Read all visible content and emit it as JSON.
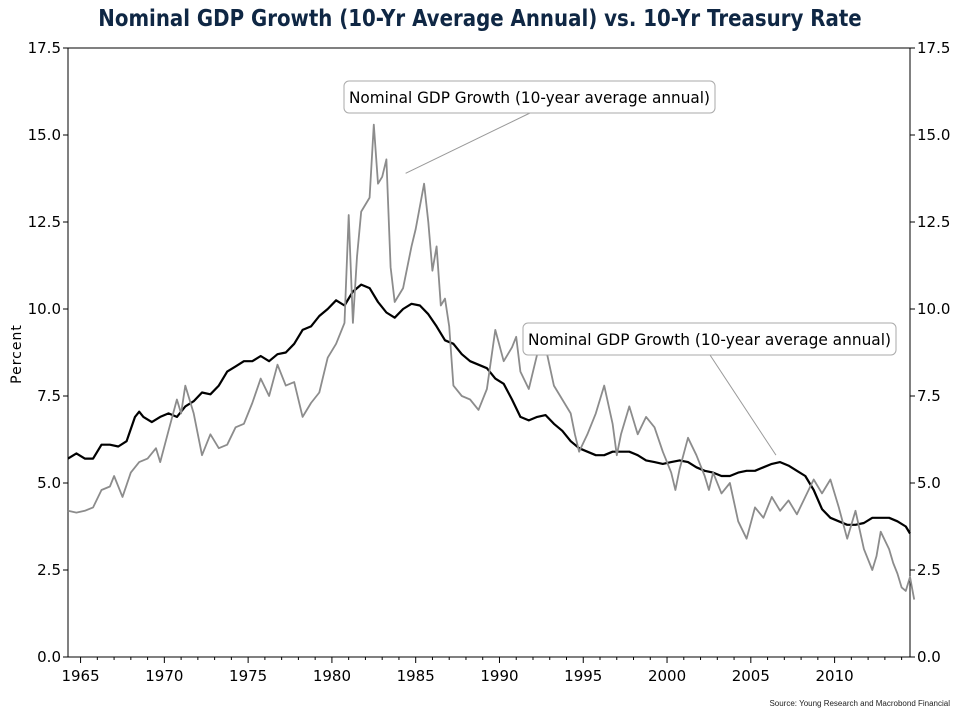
{
  "title": "Nominal GDP Growth (10-Yr Average Annual) vs. 10-Yr Treasury Rate",
  "source": "Source: Young Research and Macrobond Financial",
  "chart_data": {
    "type": "line",
    "title": "Nominal GDP Growth (10-Yr Average Annual) vs. 10-Yr Treasury Rate",
    "ylabel": "Percent",
    "xlim": [
      1964.25,
      2014.5
    ],
    "ylim": [
      0,
      17.5
    ],
    "x_ticks": [
      "1965",
      "1970",
      "1975",
      "1980",
      "1985",
      "1990",
      "1995",
      "2000",
      "2005",
      "2010"
    ],
    "y_ticks": [
      "0.0",
      "2.5",
      "5.0",
      "7.5",
      "10.0",
      "12.5",
      "15.0",
      "17.5"
    ],
    "grid": false,
    "annotations": [
      {
        "text": "Nominal GDP Growth (10-year average annual)",
        "points_to_series": 1,
        "x": 1984.4,
        "y": 13.9
      },
      {
        "text": "Nominal GDP Growth (10-year average annual)",
        "points_to_series": 0,
        "x": 2006.5,
        "y": 5.8
      }
    ],
    "series": [
      {
        "color": "#000000",
        "points": [
          [
            1964.25,
            5.7
          ],
          [
            1964.75,
            5.85
          ],
          [
            1965.25,
            5.7
          ],
          [
            1965.75,
            5.7
          ],
          [
            1966.25,
            6.1
          ],
          [
            1966.75,
            6.1
          ],
          [
            1967.25,
            6.05
          ],
          [
            1967.75,
            6.2
          ],
          [
            1968.25,
            6.9
          ],
          [
            1968.5,
            7.05
          ],
          [
            1968.75,
            6.9
          ],
          [
            1969.25,
            6.75
          ],
          [
            1969.75,
            6.9
          ],
          [
            1970.25,
            7.0
          ],
          [
            1970.75,
            6.9
          ],
          [
            1971.25,
            7.2
          ],
          [
            1971.75,
            7.35
          ],
          [
            1972.25,
            7.6
          ],
          [
            1972.75,
            7.55
          ],
          [
            1973.25,
            7.8
          ],
          [
            1973.75,
            8.2
          ],
          [
            1974.25,
            8.35
          ],
          [
            1974.75,
            8.5
          ],
          [
            1975.25,
            8.5
          ],
          [
            1975.75,
            8.65
          ],
          [
            1976.25,
            8.5
          ],
          [
            1976.75,
            8.7
          ],
          [
            1977.25,
            8.75
          ],
          [
            1977.75,
            9.0
          ],
          [
            1978.25,
            9.4
          ],
          [
            1978.75,
            9.5
          ],
          [
            1979.25,
            9.8
          ],
          [
            1979.75,
            10.0
          ],
          [
            1980.25,
            10.25
          ],
          [
            1980.75,
            10.1
          ],
          [
            1981.25,
            10.5
          ],
          [
            1981.75,
            10.7
          ],
          [
            1982.25,
            10.6
          ],
          [
            1982.75,
            10.2
          ],
          [
            1983.25,
            9.9
          ],
          [
            1983.75,
            9.75
          ],
          [
            1984.25,
            10.0
          ],
          [
            1984.75,
            10.15
          ],
          [
            1985.25,
            10.1
          ],
          [
            1985.75,
            9.85
          ],
          [
            1986.25,
            9.5
          ],
          [
            1986.75,
            9.1
          ],
          [
            1987.25,
            9.0
          ],
          [
            1987.75,
            8.7
          ],
          [
            1988.25,
            8.5
          ],
          [
            1988.75,
            8.4
          ],
          [
            1989.25,
            8.3
          ],
          [
            1989.75,
            8.0
          ],
          [
            1990.25,
            7.85
          ],
          [
            1990.75,
            7.4
          ],
          [
            1991.25,
            6.9
          ],
          [
            1991.75,
            6.8
          ],
          [
            1992.25,
            6.9
          ],
          [
            1992.75,
            6.95
          ],
          [
            1993.25,
            6.7
          ],
          [
            1993.75,
            6.5
          ],
          [
            1994.25,
            6.2
          ],
          [
            1994.75,
            6.0
          ],
          [
            1995.25,
            5.9
          ],
          [
            1995.75,
            5.8
          ],
          [
            1996.25,
            5.8
          ],
          [
            1996.75,
            5.9
          ],
          [
            1997.25,
            5.9
          ],
          [
            1997.75,
            5.9
          ],
          [
            1998.25,
            5.8
          ],
          [
            1998.75,
            5.65
          ],
          [
            1999.25,
            5.6
          ],
          [
            1999.75,
            5.55
          ],
          [
            2000.25,
            5.6
          ],
          [
            2000.75,
            5.65
          ],
          [
            2001.25,
            5.6
          ],
          [
            2001.75,
            5.45
          ],
          [
            2002.25,
            5.35
          ],
          [
            2002.75,
            5.3
          ],
          [
            2003.25,
            5.2
          ],
          [
            2003.75,
            5.2
          ],
          [
            2004.25,
            5.3
          ],
          [
            2004.75,
            5.35
          ],
          [
            2005.25,
            5.35
          ],
          [
            2005.75,
            5.45
          ],
          [
            2006.25,
            5.55
          ],
          [
            2006.75,
            5.6
          ],
          [
            2007.25,
            5.5
          ],
          [
            2007.75,
            5.35
          ],
          [
            2008.25,
            5.2
          ],
          [
            2008.75,
            4.8
          ],
          [
            2009.25,
            4.25
          ],
          [
            2009.75,
            4.0
          ],
          [
            2010.25,
            3.9
          ],
          [
            2010.75,
            3.8
          ],
          [
            2011.25,
            3.8
          ],
          [
            2011.75,
            3.85
          ],
          [
            2012.25,
            4.0
          ],
          [
            2012.75,
            4.0
          ],
          [
            2013.25,
            4.0
          ],
          [
            2013.75,
            3.9
          ],
          [
            2014.25,
            3.75
          ],
          [
            2014.5,
            3.55
          ]
        ]
      },
      {
        "color": "#8c8c8c",
        "points": [
          [
            1964.25,
            4.2
          ],
          [
            1964.75,
            4.15
          ],
          [
            1965.25,
            4.2
          ],
          [
            1965.75,
            4.3
          ],
          [
            1966.25,
            4.8
          ],
          [
            1966.75,
            4.9
          ],
          [
            1967.0,
            5.2
          ],
          [
            1967.5,
            4.6
          ],
          [
            1968.0,
            5.3
          ],
          [
            1968.5,
            5.6
          ],
          [
            1969.0,
            5.7
          ],
          [
            1969.5,
            6.0
          ],
          [
            1969.75,
            5.6
          ],
          [
            1970.25,
            6.5
          ],
          [
            1970.75,
            7.4
          ],
          [
            1971.0,
            7.0
          ],
          [
            1971.25,
            7.8
          ],
          [
            1971.75,
            7.0
          ],
          [
            1972.25,
            5.8
          ],
          [
            1972.75,
            6.4
          ],
          [
            1973.25,
            6.0
          ],
          [
            1973.75,
            6.1
          ],
          [
            1974.25,
            6.6
          ],
          [
            1974.75,
            6.7
          ],
          [
            1975.25,
            7.3
          ],
          [
            1975.75,
            8.0
          ],
          [
            1976.25,
            7.5
          ],
          [
            1976.75,
            8.4
          ],
          [
            1977.25,
            7.8
          ],
          [
            1977.75,
            7.9
          ],
          [
            1978.25,
            6.9
          ],
          [
            1978.75,
            7.3
          ],
          [
            1979.25,
            7.6
          ],
          [
            1979.75,
            8.6
          ],
          [
            1980.25,
            9.0
          ],
          [
            1980.75,
            9.6
          ],
          [
            1981.0,
            12.7
          ],
          [
            1981.25,
            9.6
          ],
          [
            1981.5,
            11.5
          ],
          [
            1981.75,
            12.8
          ],
          [
            1982.25,
            13.2
          ],
          [
            1982.5,
            15.3
          ],
          [
            1982.75,
            13.6
          ],
          [
            1983.0,
            13.8
          ],
          [
            1983.25,
            14.3
          ],
          [
            1983.5,
            11.2
          ],
          [
            1983.75,
            10.2
          ],
          [
            1984.25,
            10.6
          ],
          [
            1984.75,
            11.8
          ],
          [
            1985.0,
            12.3
          ],
          [
            1985.5,
            13.6
          ],
          [
            1985.75,
            12.5
          ],
          [
            1986.0,
            11.1
          ],
          [
            1986.25,
            11.8
          ],
          [
            1986.5,
            10.1
          ],
          [
            1986.75,
            10.3
          ],
          [
            1987.0,
            9.5
          ],
          [
            1987.25,
            7.8
          ],
          [
            1987.75,
            7.5
          ],
          [
            1988.25,
            7.4
          ],
          [
            1988.75,
            7.1
          ],
          [
            1989.25,
            7.7
          ],
          [
            1989.75,
            9.4
          ],
          [
            1990.25,
            8.5
          ],
          [
            1990.75,
            8.9
          ],
          [
            1991.0,
            9.2
          ],
          [
            1991.25,
            8.2
          ],
          [
            1991.75,
            7.7
          ],
          [
            1992.25,
            8.7
          ],
          [
            1992.75,
            8.9
          ],
          [
            1993.25,
            7.8
          ],
          [
            1993.75,
            7.4
          ],
          [
            1994.25,
            7.0
          ],
          [
            1994.5,
            6.4
          ],
          [
            1994.75,
            5.9
          ],
          [
            1995.25,
            6.4
          ],
          [
            1995.75,
            7.0
          ],
          [
            1996.25,
            7.8
          ],
          [
            1996.75,
            6.7
          ],
          [
            1997.0,
            5.8
          ],
          [
            1997.25,
            6.4
          ],
          [
            1997.75,
            7.2
          ],
          [
            1998.25,
            6.4
          ],
          [
            1998.75,
            6.9
          ],
          [
            1999.25,
            6.6
          ],
          [
            1999.75,
            5.9
          ],
          [
            2000.25,
            5.3
          ],
          [
            2000.5,
            4.8
          ],
          [
            2000.75,
            5.4
          ],
          [
            2001.25,
            6.3
          ],
          [
            2001.75,
            5.8
          ],
          [
            2002.25,
            5.2
          ],
          [
            2002.5,
            4.8
          ],
          [
            2002.75,
            5.3
          ],
          [
            2003.25,
            4.7
          ],
          [
            2003.75,
            5.0
          ],
          [
            2004.25,
            3.9
          ],
          [
            2004.75,
            3.4
          ],
          [
            2005.25,
            4.3
          ],
          [
            2005.75,
            4.0
          ],
          [
            2006.25,
            4.6
          ],
          [
            2006.75,
            4.2
          ],
          [
            2007.25,
            4.5
          ],
          [
            2007.75,
            4.1
          ],
          [
            2008.25,
            4.6
          ],
          [
            2008.75,
            5.1
          ],
          [
            2009.25,
            4.7
          ],
          [
            2009.75,
            5.1
          ],
          [
            2010.25,
            4.3
          ],
          [
            2010.75,
            3.4
          ],
          [
            2011.25,
            4.2
          ],
          [
            2011.75,
            3.1
          ],
          [
            2012.25,
            2.5
          ],
          [
            2012.5,
            2.9
          ],
          [
            2012.75,
            3.6
          ],
          [
            2013.25,
            3.1
          ],
          [
            2013.5,
            2.7
          ],
          [
            2013.75,
            2.4
          ],
          [
            2014.0,
            2.0
          ],
          [
            2014.25,
            1.9
          ],
          [
            2014.5,
            2.3
          ],
          [
            2014.75,
            1.65
          ]
        ]
      }
    ]
  }
}
